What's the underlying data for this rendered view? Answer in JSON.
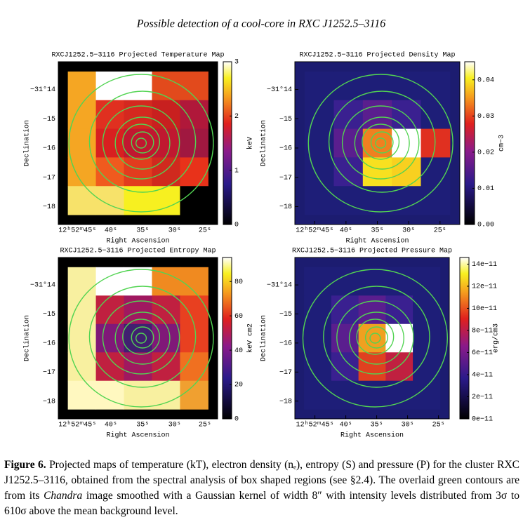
{
  "header": {
    "title": "Possible detection of a cool-core in RXC J1252.5–3116"
  },
  "panels": [
    {
      "title": "RXCJ1252.5−3116 Projected Temperature Map",
      "ylabel": "Declination",
      "xlabel": "Right Ascension",
      "yticks": [
        "−31°14",
        "−15",
        "−16",
        "−17",
        "−18"
      ],
      "xticks": [
        "12ʰ52ᵐ45ˢ",
        "40ˢ",
        "35ˢ",
        "30ˢ",
        "25ˢ"
      ],
      "colorbar": {
        "label": "keV",
        "lim": [
          0,
          3
        ],
        "ticks": [
          0,
          1,
          2,
          3
        ]
      }
    },
    {
      "title": "RXCJ1252.5−3116 Projected Density Map",
      "ylabel": "Declination",
      "xlabel": "Right Ascension",
      "yticks": [
        "−31°14",
        "−15",
        "−16",
        "−17",
        "−18"
      ],
      "xticks": [
        "12ʰ52ᵐ45ˢ",
        "40ˢ",
        "35ˢ",
        "30ˢ",
        "25ˢ"
      ],
      "colorbar": {
        "label": "cm−3",
        "lim": [
          0,
          0.045
        ],
        "ticks": [
          {
            "value": 0,
            "label": "0.00"
          },
          0.01,
          0.02,
          0.03,
          0.04
        ]
      }
    },
    {
      "title": "RXCJ1252.5−3116 Projected Entropy Map",
      "ylabel": "Declination",
      "xlabel": "Right Ascension",
      "yticks": [
        "−31°14",
        "−15",
        "−16",
        "−17",
        "−18"
      ],
      "xticks": [
        "12ʰ52ᵐ45ˢ",
        "40ˢ",
        "35ˢ",
        "30ˢ",
        "25ˢ"
      ],
      "colorbar": {
        "label": "keV cm2",
        "lim": [
          0,
          94
        ],
        "ticks": [
          0,
          20,
          40,
          60,
          80
        ]
      }
    },
    {
      "title": "RXCJ1252.5−3116 Projected Pressure Map",
      "ylabel": "Declination",
      "xlabel": "Right Ascension",
      "yticks": [
        "−31°14",
        "−15",
        "−16",
        "−17",
        "−18"
      ],
      "xticks": [
        "12ʰ52ᵐ45ˢ",
        "40ˢ",
        "35ˢ",
        "30ˢ",
        "25ˢ"
      ],
      "colorbar": {
        "label": "erg/cm3",
        "lim": [
          0,
          1.46e-10
        ],
        "ticks": [
          {
            "value": 0,
            "label": "0e−11"
          },
          {
            "value": 2e-11,
            "label": "2e−11"
          },
          {
            "value": 4e-11,
            "label": "4e−11"
          },
          {
            "value": 6e-11,
            "label": "6e−11"
          },
          {
            "value": 8e-11,
            "label": "8e−11"
          },
          {
            "value": 1e-10,
            "label": "10e−11"
          },
          {
            "value": 1.2e-10,
            "label": "12e−11"
          },
          {
            "value": 1.4e-10,
            "label": "14e−11"
          }
        ]
      }
    }
  ],
  "caption": {
    "label": "Figure 6.",
    "parts": [
      "Projected maps of temperature (kT), electron density (nₑ), entropy (S) and pressure (P) for the cluster RXC J1252.5–3116, obtained from the spectral analysis of box shaped regions (see §2.4). The overlaid green contours are from its ",
      "Chandra",
      " image smoothed with a Gaussian kernel of width 8″ with intensity levels distributed from 3σ to 610σ above the mean background level."
    ]
  }
}
